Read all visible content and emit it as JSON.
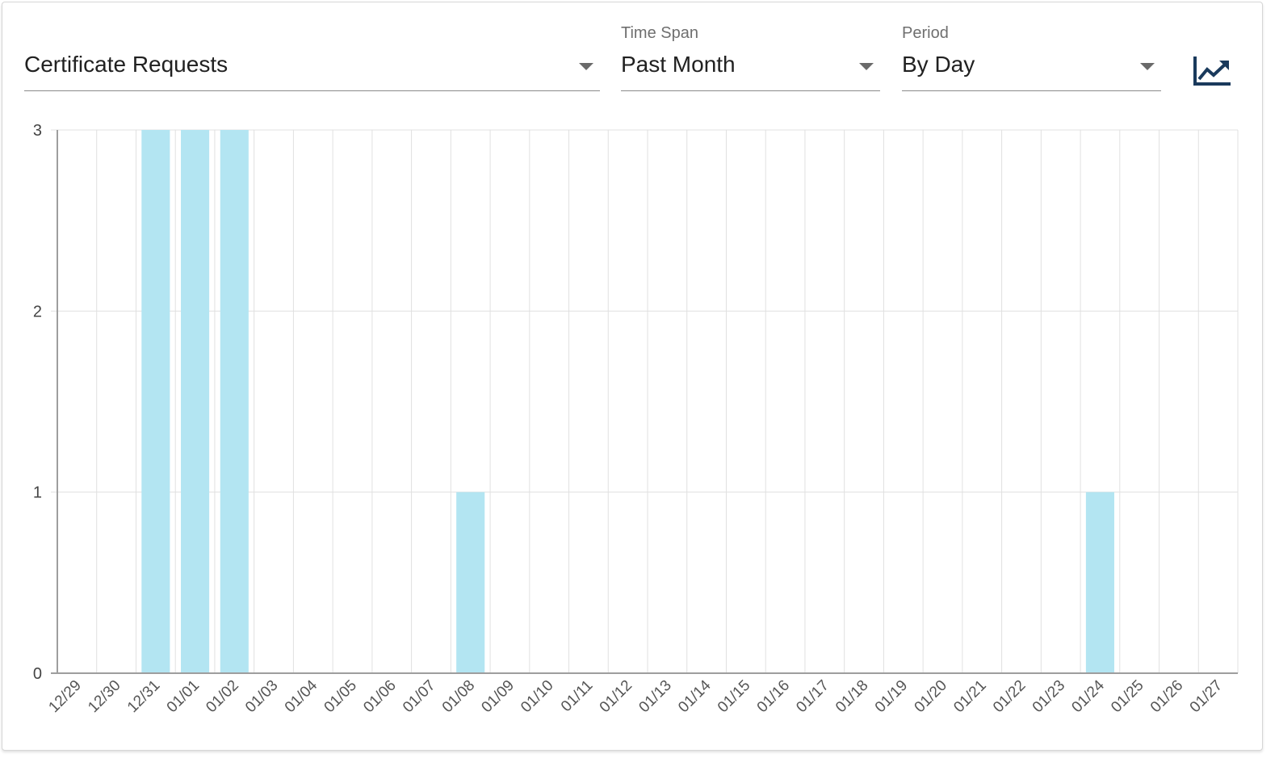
{
  "controls": {
    "metric": {
      "label": "",
      "value": "Certificate Requests"
    },
    "time_span": {
      "label": "Time Span",
      "value": "Past Month"
    },
    "period": {
      "label": "Period",
      "value": "By Day"
    },
    "chart_toggle_icon": "trending-up-icon"
  },
  "colors": {
    "bar": "#b3e5f2",
    "icon": "#1a3a5c",
    "grid": "#e0e0e0",
    "axis": "#9e9e9e"
  },
  "chart_data": {
    "type": "bar",
    "categories": [
      "12/29",
      "12/30",
      "12/31",
      "01/01",
      "01/02",
      "01/03",
      "01/04",
      "01/05",
      "01/06",
      "01/07",
      "01/08",
      "01/09",
      "01/10",
      "01/11",
      "01/12",
      "01/13",
      "01/14",
      "01/15",
      "01/16",
      "01/17",
      "01/18",
      "01/19",
      "01/20",
      "01/21",
      "01/22",
      "01/23",
      "01/24",
      "01/25",
      "01/26",
      "01/27"
    ],
    "values": [
      0,
      0,
      3,
      3,
      3,
      0,
      0,
      0,
      0,
      0,
      1,
      0,
      0,
      0,
      0,
      0,
      0,
      0,
      0,
      0,
      0,
      0,
      0,
      0,
      0,
      0,
      1,
      0,
      0,
      0
    ],
    "ylim": [
      0,
      3
    ],
    "yticks": [
      0,
      1,
      2,
      3
    ],
    "grid": true,
    "legend": "none"
  }
}
